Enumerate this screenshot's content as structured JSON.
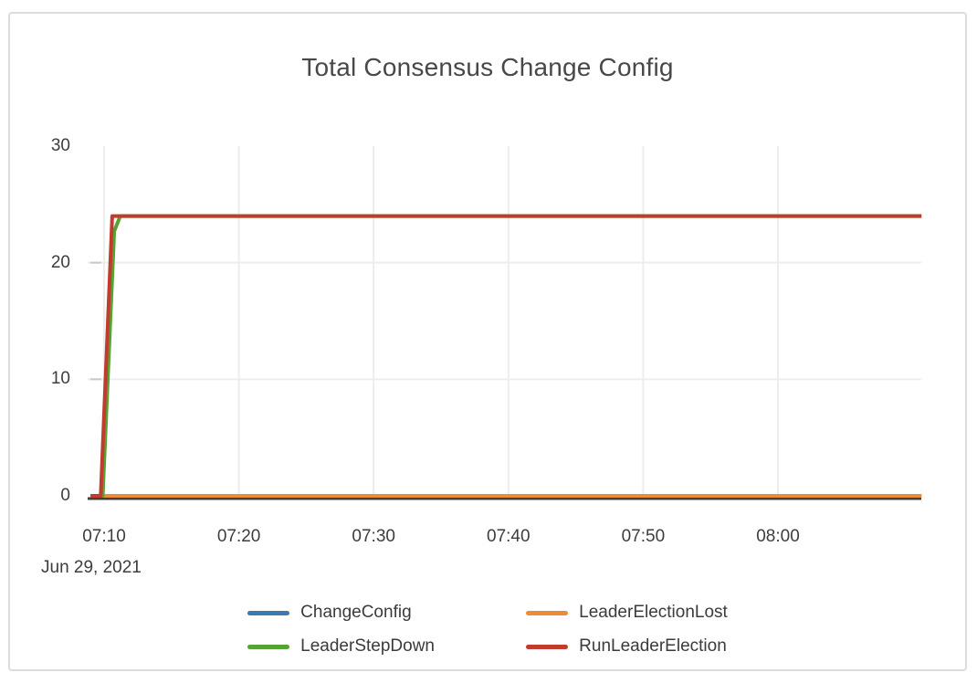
{
  "chart_data": {
    "type": "line",
    "title": "Total Consensus Change Config",
    "x_axis": {
      "unit": "time of day (HH:MM)",
      "date_label": "Jun 29, 2021",
      "ticks": [
        {
          "t": 10,
          "label": "07:10"
        },
        {
          "t": 20,
          "label": "07:20"
        },
        {
          "t": 30,
          "label": "07:30"
        },
        {
          "t": 40,
          "label": "07:40"
        },
        {
          "t": 50,
          "label": "07:50"
        },
        {
          "t": 60,
          "label": "08:00"
        }
      ],
      "range_minutes_after_0700": [
        8.8,
        70.65
      ],
      "grid": true
    },
    "y_axis": {
      "ticks": [
        {
          "v": 0,
          "label": "0"
        },
        {
          "v": 10,
          "label": "10"
        },
        {
          "v": 20,
          "label": "20"
        },
        {
          "v": 30,
          "label": "30"
        }
      ],
      "range": [
        0,
        30
      ],
      "grid_values": [
        10,
        20
      ],
      "grid": true
    },
    "legend_position": "bottom",
    "series": [
      {
        "name": "ChangeConfig",
        "color": "#3c78b1",
        "points": [
          [
            9,
            0
          ],
          [
            70.65,
            0
          ]
        ],
        "summary": "flat at 0 for entire range"
      },
      {
        "name": "LeaderElectionLost",
        "color": "#ee8c35",
        "points": [
          [
            9,
            0
          ],
          [
            70.65,
            0
          ]
        ],
        "summary": "flat at 0 for entire range"
      },
      {
        "name": "LeaderStepDown",
        "color": "#56a233",
        "points": [
          [
            9,
            0
          ],
          [
            9.9,
            0
          ],
          [
            10.75,
            22.7
          ],
          [
            11.2,
            24
          ],
          [
            70.65,
            24
          ]
        ],
        "summary": "0 until ~07:10, rises to 24 by ~07:11, flat at 24 after"
      },
      {
        "name": "RunLeaderElection",
        "color": "#c23c2e",
        "points": [
          [
            9,
            0
          ],
          [
            9.75,
            0
          ],
          [
            10.6,
            24
          ],
          [
            70.65,
            24
          ]
        ],
        "summary": "0 until ~07:10, rises to 24 by ~07:11, flat at 24 after"
      }
    ]
  },
  "palette": {
    "grid_line": "#ededed",
    "axis_line": "#3f3f3f",
    "tick_dash": "#c9c9c9",
    "text": "#3d3d3d",
    "title_text": "#484848",
    "card_border": "#dcdcdc",
    "background": "#ffffff"
  }
}
